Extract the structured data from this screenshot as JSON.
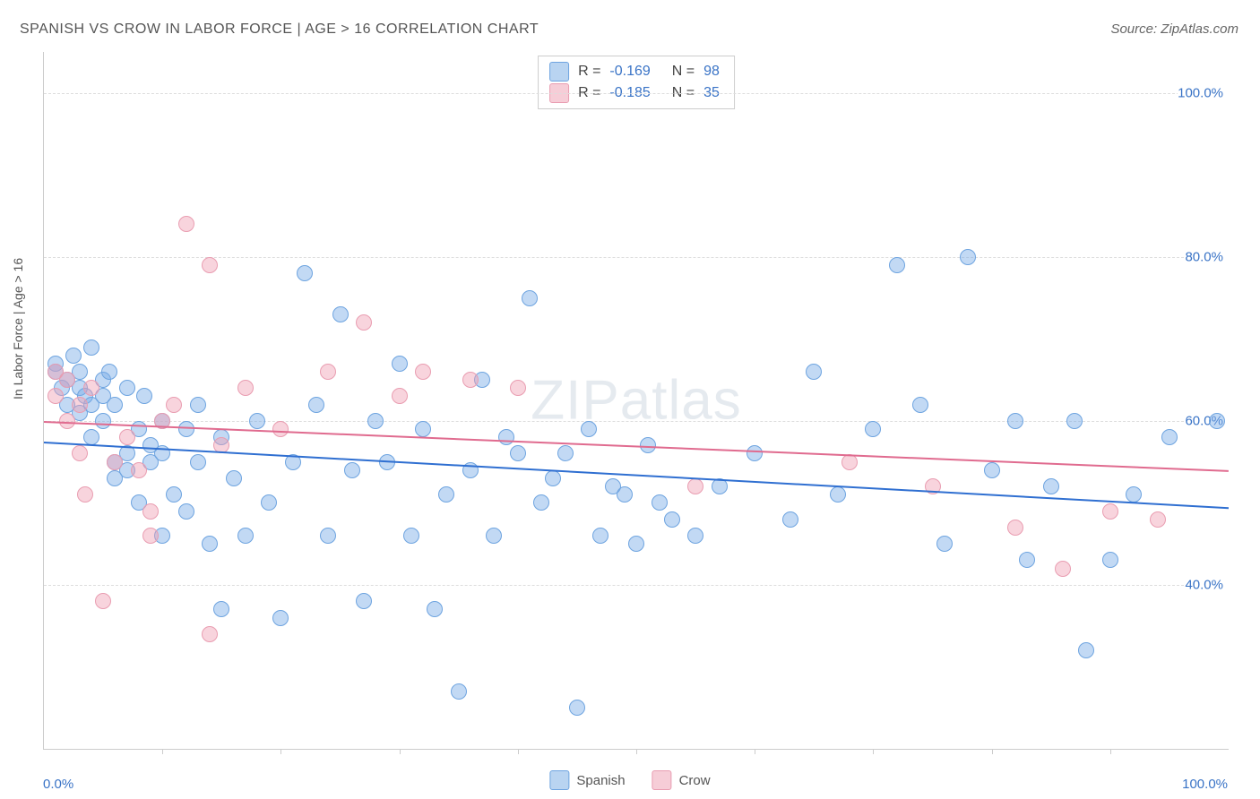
{
  "title": "SPANISH VS CROW IN LABOR FORCE | AGE > 16 CORRELATION CHART",
  "source": "Source: ZipAtlas.com",
  "ylabel": "In Labor Force | Age > 16",
  "watermark_a": "ZIP",
  "watermark_b": "atlas",
  "chart": {
    "type": "scatter",
    "xlim": [
      0,
      100
    ],
    "ylim": [
      20,
      105
    ],
    "ytick_values": [
      40,
      60,
      80,
      100
    ],
    "ytick_labels": [
      "40.0%",
      "60.0%",
      "80.0%",
      "100.0%"
    ],
    "xtick_positions": [
      10,
      20,
      30,
      40,
      50,
      60,
      70,
      80,
      90
    ],
    "x_label_min": "0.0%",
    "x_label_max": "100.0%",
    "background_color": "#ffffff",
    "grid_color": "#dddddd",
    "axis_color": "#cccccc",
    "tick_label_color": "#3973c6",
    "point_radius": 8,
    "series": [
      {
        "name": "Spanish",
        "fill_color": "rgba(120,170,230,0.45)",
        "stroke_color": "#6ea4e0",
        "swatch_fill": "#b9d4f1",
        "swatch_border": "#6ea4e0",
        "trend_color": "#2f6fd1",
        "r": "-0.169",
        "n": "98",
        "trend": {
          "y_at_x0": 57.5,
          "y_at_x100": 49.5
        },
        "points": [
          [
            1,
            67
          ],
          [
            1,
            66
          ],
          [
            1.5,
            64
          ],
          [
            2,
            65
          ],
          [
            2,
            62
          ],
          [
            2.5,
            68
          ],
          [
            3,
            66
          ],
          [
            3,
            64
          ],
          [
            3,
            61
          ],
          [
            3.5,
            63
          ],
          [
            4,
            69
          ],
          [
            4,
            62
          ],
          [
            4,
            58
          ],
          [
            5,
            65
          ],
          [
            5,
            63
          ],
          [
            5,
            60
          ],
          [
            5.5,
            66
          ],
          [
            6,
            62
          ],
          [
            6,
            55
          ],
          [
            6,
            53
          ],
          [
            7,
            64
          ],
          [
            7,
            56
          ],
          [
            7,
            54
          ],
          [
            8,
            59
          ],
          [
            8,
            50
          ],
          [
            8.5,
            63
          ],
          [
            9,
            57
          ],
          [
            9,
            55
          ],
          [
            10,
            60
          ],
          [
            10,
            56
          ],
          [
            10,
            46
          ],
          [
            11,
            51
          ],
          [
            12,
            59
          ],
          [
            12,
            49
          ],
          [
            13,
            62
          ],
          [
            13,
            55
          ],
          [
            14,
            45
          ],
          [
            15,
            58
          ],
          [
            15,
            37
          ],
          [
            16,
            53
          ],
          [
            17,
            46
          ],
          [
            18,
            60
          ],
          [
            19,
            50
          ],
          [
            20,
            36
          ],
          [
            21,
            55
          ],
          [
            22,
            78
          ],
          [
            23,
            62
          ],
          [
            24,
            46
          ],
          [
            25,
            73
          ],
          [
            26,
            54
          ],
          [
            27,
            38
          ],
          [
            28,
            60
          ],
          [
            29,
            55
          ],
          [
            30,
            67
          ],
          [
            31,
            46
          ],
          [
            32,
            59
          ],
          [
            33,
            37
          ],
          [
            34,
            51
          ],
          [
            35,
            27
          ],
          [
            36,
            54
          ],
          [
            37,
            65
          ],
          [
            38,
            46
          ],
          [
            39,
            58
          ],
          [
            40,
            56
          ],
          [
            41,
            75
          ],
          [
            42,
            50
          ],
          [
            43,
            53
          ],
          [
            44,
            56
          ],
          [
            45,
            25
          ],
          [
            46,
            59
          ],
          [
            47,
            46
          ],
          [
            48,
            52
          ],
          [
            49,
            51
          ],
          [
            50,
            45
          ],
          [
            51,
            57
          ],
          [
            52,
            50
          ],
          [
            53,
            48
          ],
          [
            55,
            46
          ],
          [
            57,
            52
          ],
          [
            60,
            56
          ],
          [
            63,
            48
          ],
          [
            65,
            66
          ],
          [
            67,
            51
          ],
          [
            70,
            59
          ],
          [
            72,
            79
          ],
          [
            74,
            62
          ],
          [
            76,
            45
          ],
          [
            78,
            80
          ],
          [
            80,
            54
          ],
          [
            82,
            60
          ],
          [
            83,
            43
          ],
          [
            85,
            52
          ],
          [
            87,
            60
          ],
          [
            88,
            32
          ],
          [
            90,
            43
          ],
          [
            92,
            51
          ],
          [
            95,
            58
          ],
          [
            99,
            60
          ]
        ]
      },
      {
        "name": "Crow",
        "fill_color": "rgba(240,160,180,0.45)",
        "stroke_color": "#e99db1",
        "swatch_fill": "#f6cdd7",
        "swatch_border": "#e99db1",
        "trend_color": "#e06b8f",
        "r": "-0.185",
        "n": "35",
        "trend": {
          "y_at_x0": 60.0,
          "y_at_x100": 54.0
        },
        "points": [
          [
            1,
            66
          ],
          [
            1,
            63
          ],
          [
            2,
            65
          ],
          [
            2,
            60
          ],
          [
            3,
            62
          ],
          [
            3,
            56
          ],
          [
            3.5,
            51
          ],
          [
            4,
            64
          ],
          [
            5,
            38
          ],
          [
            6,
            55
          ],
          [
            7,
            58
          ],
          [
            8,
            54
          ],
          [
            9,
            49
          ],
          [
            9,
            46
          ],
          [
            10,
            60
          ],
          [
            11,
            62
          ],
          [
            12,
            84
          ],
          [
            14,
            79
          ],
          [
            14,
            34
          ],
          [
            15,
            57
          ],
          [
            17,
            64
          ],
          [
            20,
            59
          ],
          [
            24,
            66
          ],
          [
            27,
            72
          ],
          [
            30,
            63
          ],
          [
            32,
            66
          ],
          [
            36,
            65
          ],
          [
            40,
            64
          ],
          [
            55,
            52
          ],
          [
            68,
            55
          ],
          [
            75,
            52
          ],
          [
            82,
            47
          ],
          [
            86,
            42
          ],
          [
            90,
            49
          ],
          [
            94,
            48
          ]
        ]
      }
    ]
  },
  "legend_bottom": [
    {
      "label": "Spanish",
      "fill": "#b9d4f1",
      "border": "#6ea4e0"
    },
    {
      "label": "Crow",
      "fill": "#f6cdd7",
      "border": "#e99db1"
    }
  ]
}
